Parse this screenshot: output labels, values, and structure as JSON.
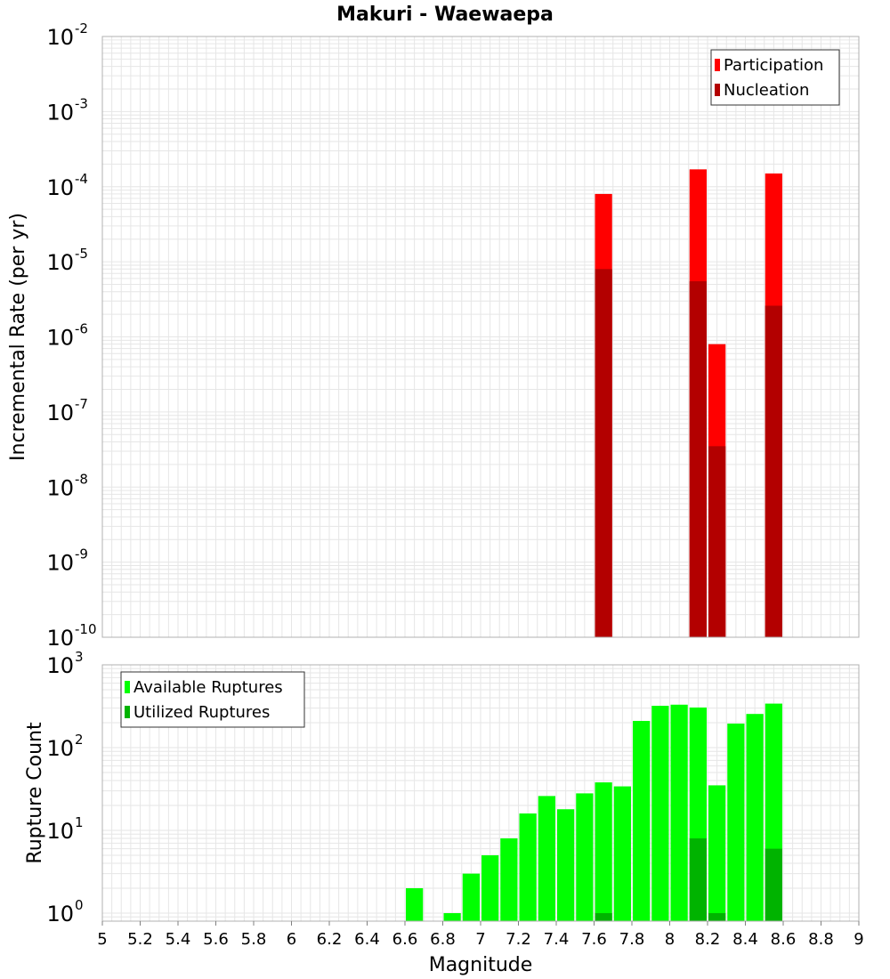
{
  "title": "Makuri - Waewaepa",
  "colors": {
    "participation": "#ff0000",
    "nucleation": "#b30000",
    "available": "#00ff00",
    "utilized": "#00b300",
    "grid": "#e6e6e6",
    "frame": "#b0b0b0"
  },
  "chart_data": [
    {
      "type": "bar",
      "title": "Makuri - Waewaepa",
      "xlabel": "",
      "ylabel": "Incremental Rate (per yr)",
      "xlim": [
        5,
        9
      ],
      "ylim": [
        1e-10,
        0.01
      ],
      "yscale": "log",
      "y_tick_exponents": [
        "-10",
        "-9",
        "-8",
        "-7",
        "-6",
        "-5",
        "-4",
        "-3",
        "-2"
      ],
      "y_tick_base": "10",
      "grid": true,
      "legend_position": "top-right",
      "bar_width": 0.1,
      "series": [
        {
          "name": "Participation",
          "points": [
            {
              "x": 7.65,
              "y": 8e-05
            },
            {
              "x": 8.15,
              "y": 0.00017
            },
            {
              "x": 8.25,
              "y": 8e-07
            },
            {
              "x": 8.55,
              "y": 0.00015
            }
          ]
        },
        {
          "name": "Nucleation",
          "points": [
            {
              "x": 7.65,
              "y": 8e-06
            },
            {
              "x": 8.15,
              "y": 5.5e-06
            },
            {
              "x": 8.25,
              "y": 3.5e-08
            },
            {
              "x": 8.55,
              "y": 2.6e-06
            }
          ]
        }
      ]
    },
    {
      "type": "bar",
      "xlabel": "Magnitude",
      "ylabel": "Rupture Count",
      "xlim": [
        5,
        9
      ],
      "ylim": [
        0.8,
        1000
      ],
      "yscale": "log",
      "x_ticks": [
        "5",
        "5.2",
        "5.4",
        "5.6",
        "5.8",
        "6",
        "6.2",
        "6.4",
        "6.6",
        "6.8",
        "7",
        "7.2",
        "7.4",
        "7.6",
        "7.8",
        "8",
        "8.2",
        "8.4",
        "8.6",
        "8.8",
        "9"
      ],
      "y_tick_exponents": [
        "0",
        "1",
        "2",
        "3"
      ],
      "y_tick_base": "10",
      "grid": true,
      "legend_position": "top-left",
      "bar_width": 0.1,
      "series": [
        {
          "name": "Available Ruptures",
          "points": [
            {
              "x": 6.65,
              "y": 2
            },
            {
              "x": 6.85,
              "y": 1
            },
            {
              "x": 6.95,
              "y": 3
            },
            {
              "x": 7.05,
              "y": 5
            },
            {
              "x": 7.15,
              "y": 8
            },
            {
              "x": 7.25,
              "y": 16
            },
            {
              "x": 7.35,
              "y": 26
            },
            {
              "x": 7.45,
              "y": 18
            },
            {
              "x": 7.55,
              "y": 28
            },
            {
              "x": 7.65,
              "y": 38
            },
            {
              "x": 7.75,
              "y": 34
            },
            {
              "x": 7.85,
              "y": 210
            },
            {
              "x": 7.95,
              "y": 320
            },
            {
              "x": 8.05,
              "y": 330
            },
            {
              "x": 8.15,
              "y": 305
            },
            {
              "x": 8.25,
              "y": 35
            },
            {
              "x": 8.35,
              "y": 195
            },
            {
              "x": 8.45,
              "y": 255
            },
            {
              "x": 8.55,
              "y": 340
            }
          ]
        },
        {
          "name": "Utilized Ruptures",
          "points": [
            {
              "x": 7.65,
              "y": 1
            },
            {
              "x": 8.15,
              "y": 8
            },
            {
              "x": 8.25,
              "y": 1
            },
            {
              "x": 8.55,
              "y": 6
            }
          ]
        }
      ]
    }
  ]
}
